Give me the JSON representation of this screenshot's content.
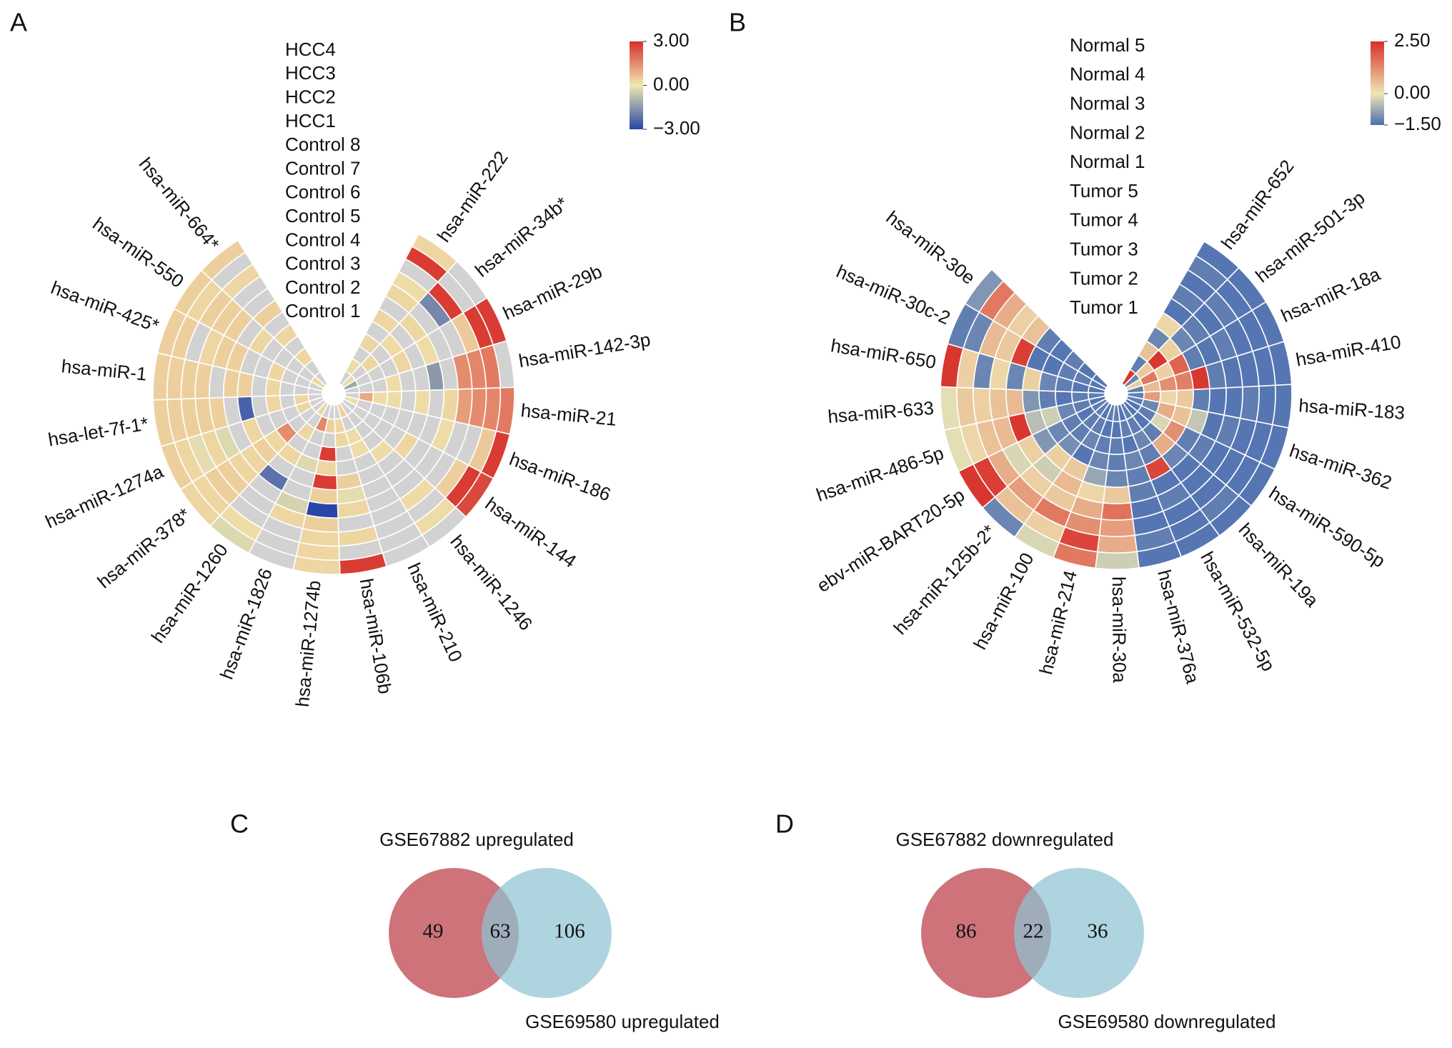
{
  "chart_data": [
    {
      "type": "polar_heatmap",
      "panel": "A",
      "categories": [
        "hsa-miR-222",
        "hsa-miR-34b*",
        "hsa-miR-29b",
        "hsa-miR-142-3p",
        "hsa-miR-21",
        "hsa-miR-186",
        "hsa-miR-144",
        "hsa-miR-1246",
        "hsa-miR-210",
        "hsa-miR-106b",
        "hsa-miR-1274b",
        "hsa-miR-1826",
        "hsa-miR-1260",
        "hsa-miR-378*",
        "hsa-miR-1274a",
        "hsa-let-7f-1*",
        "hsa-miR-1",
        "hsa-miR-425*",
        "hsa-miR-550",
        "hsa-miR-664*"
      ],
      "series": [
        {
          "name": "HCC4",
          "values": [
            0.3,
            null,
            2.8,
            null,
            1.8,
            2.8,
            2.6,
            null,
            null,
            2.8,
            0.3,
            null,
            -0.3,
            0.3,
            0.4,
            0.4,
            0.4,
            0.4,
            0.4,
            0.4
          ]
        },
        {
          "name": "HCC3",
          "values": [
            2.8,
            null,
            2.8,
            1.8,
            1.6,
            0.5,
            2.8,
            0.2,
            null,
            null,
            0.3,
            null,
            0.2,
            0.3,
            0.3,
            0.4,
            0.4,
            0.4,
            0.3,
            null
          ]
        },
        {
          "name": "HCC2",
          "values": [
            null,
            2.8,
            0.5,
            1.6,
            1.5,
            null,
            0.4,
            null,
            null,
            0.3,
            0.3,
            null,
            null,
            0.4,
            -0.2,
            0.4,
            0.4,
            null,
            0.4,
            0.3
          ]
        },
        {
          "name": "HCC1",
          "values": [
            0.2,
            -1.8,
            null,
            1.5,
            1.2,
            null,
            null,
            0.2,
            null,
            null,
            0.4,
            0.3,
            null,
            0.4,
            0.3,
            0.4,
            0.4,
            0.3,
            0.4,
            null
          ]
        },
        {
          "name": "Control 8",
          "values": [
            0.3,
            null,
            null,
            null,
            0.3,
            0.2,
            null,
            null,
            null,
            0.3,
            -3,
            -0.4,
            null,
            0.3,
            -0.3,
            0.4,
            null,
            0.4,
            0.4,
            null
          ]
        },
        {
          "name": "Control 7",
          "values": [
            null,
            0.3,
            0.2,
            -1.5,
            null,
            null,
            null,
            null,
            null,
            -0.2,
            0.4,
            null,
            -2.2,
            0.3,
            null,
            null,
            0.4,
            0.4,
            null,
            0.4
          ]
        },
        {
          "name": "Control 6",
          "values": [
            0.3,
            null,
            null,
            null,
            0.2,
            null,
            0.3,
            null,
            null,
            0.4,
            2.8,
            null,
            null,
            0.4,
            0.3,
            -2.5,
            0.4,
            null,
            0.3,
            null
          ]
        },
        {
          "name": "Control 5",
          "values": [
            null,
            0.2,
            0.3,
            null,
            null,
            null,
            null,
            0.2,
            null,
            null,
            0.3,
            -0.3,
            0.3,
            0.3,
            null,
            null,
            null,
            null,
            null,
            0.3
          ]
        },
        {
          "name": "Control 4",
          "values": [
            0.3,
            null,
            null,
            0.2,
            0.2,
            null,
            null,
            null,
            0.2,
            null,
            2.8,
            null,
            null,
            1.5,
            null,
            0.3,
            0.3,
            0.3,
            null,
            null
          ]
        },
        {
          "name": "Control 3",
          "values": [
            null,
            0.3,
            null,
            null,
            0.2,
            null,
            null,
            null,
            0.2,
            0.3,
            null,
            null,
            0.3,
            null,
            null,
            null,
            null,
            null,
            null,
            0.3
          ]
        },
        {
          "name": "Control 2",
          "values": [
            0.2,
            null,
            null,
            null,
            1.0,
            null,
            null,
            null,
            null,
            0.3,
            0.4,
            1.6,
            null,
            null,
            0.3,
            0.3,
            null,
            null,
            null,
            null
          ]
        },
        {
          "name": "Control 1",
          "values": [
            null,
            0.2,
            -1.2,
            null,
            null,
            0.2,
            null,
            null,
            0.4,
            null,
            null,
            null,
            0.3,
            null,
            null,
            null,
            null,
            null,
            0.3,
            null
          ]
        }
      ],
      "clim": [
        -3,
        3
      ],
      "cticks": [
        {
          "value": 3,
          "label": "3.00"
        },
        {
          "value": 0,
          "label": "0.00"
        },
        {
          "value": -3,
          "label": "−3.00"
        }
      ],
      "colors": [
        "#2746a8",
        "#f0e8b0",
        "#d7302a"
      ],
      "missing_color": "#d2d2d2"
    },
    {
      "type": "polar_heatmap",
      "panel": "B",
      "categories": [
        "hsa-miR-652",
        "hsa-miR-501-3p",
        "hsa-miR-18a",
        "hsa-miR-410",
        "hsa-miR-183",
        "hsa-miR-362",
        "hsa-miR-590-5p",
        "hsa-miR-19a",
        "hsa-miR-532-5p",
        "hsa-miR-376a",
        "hsa-miR-30a",
        "hsa-miR-214",
        "hsa-miR-100",
        "hsa-miR-125b-2*",
        "ebv-miR-BART20-5p",
        "hsa-miR-486-5p",
        "hsa-miR-633",
        "hsa-miR-650",
        "hsa-miR-30c-2",
        "hsa-miR-30e"
      ],
      "series": [
        {
          "name": "Normal 5",
          "values": [
            -1.4,
            -1.4,
            -1.4,
            -1.4,
            -1.4,
            -1.4,
            -1.4,
            -1.4,
            -1.4,
            -1.4,
            -0.3,
            1.5,
            -0.2,
            -1.2,
            2.4,
            -0.1,
            -0.1,
            2.4,
            -1.3,
            -1.0
          ]
        },
        {
          "name": "Normal 4",
          "values": [
            -1.3,
            -1.4,
            -1.4,
            -1.4,
            -1.4,
            -1.4,
            -1.4,
            -1.3,
            -1.4,
            -1.3,
            0.8,
            2.2,
            0.3,
            0.5,
            2.3,
            0.2,
            0.4,
            0.3,
            -1.2,
            1.5
          ]
        },
        {
          "name": "Normal 3",
          "values": [
            -1.4,
            -1.3,
            -1.4,
            -1.4,
            -1.3,
            -1.4,
            -1.4,
            -1.4,
            -1.4,
            -1.4,
            1.0,
            1.2,
            1.5,
            1.0,
            0.8,
            0.5,
            0.3,
            -1.2,
            0.6,
            0.8
          ]
        },
        {
          "name": "Normal 2",
          "values": [
            -1.3,
            -1.4,
            -1.3,
            -1.4,
            -1.4,
            -1.3,
            -1.4,
            -1.4,
            -1.3,
            -1.4,
            1.6,
            0.8,
            0.4,
            0.3,
            -0.2,
            0.6,
            0.5,
            0.2,
            0.4,
            0.3
          ]
        },
        {
          "name": "Normal 1",
          "values": [
            -1.4,
            -1.3,
            -1.4,
            -1.3,
            -1.4,
            -1.4,
            -1.3,
            -1.4,
            -1.4,
            -1.3,
            0.4,
            0.2,
            0.6,
            -0.3,
            0.3,
            2.4,
            0.6,
            -1.2,
            2.3,
            0.5
          ]
        },
        {
          "name": "Tumor 5",
          "values": [
            0.2,
            -1.2,
            -1.3,
            2.4,
            -1.3,
            -0.4,
            -1.3,
            -1.2,
            2.2,
            -1.3,
            -1.2,
            -0.8,
            0.4,
            0.3,
            -1.0,
            -0.5,
            -1.0,
            0.3,
            -1.4,
            -1.3
          ]
        },
        {
          "name": "Tumor 4",
          "values": [
            -1.2,
            0.3,
            1.8,
            1.4,
            0.4,
            0.5,
            1.2,
            0.8,
            -1.3,
            -1.2,
            -1.3,
            -1.2,
            -1.4,
            -1.1,
            -1.2,
            -0.3,
            -1.3,
            -1.2,
            -1.4,
            -1.4
          ]
        },
        {
          "name": "Tumor 3",
          "values": [
            0.5,
            2.4,
            0.3,
            1.2,
            0.2,
            0.8,
            -0.2,
            -1.3,
            -1.2,
            -1.4,
            -1.3,
            -1.3,
            -1.2,
            -1.3,
            -1.3,
            -1.2,
            -1.4,
            -1.3,
            -1.3,
            -1.3
          ]
        },
        {
          "name": "Tumor 2",
          "values": [
            -1.3,
            0.4,
            1.5,
            0.6,
            1.0,
            -1.2,
            -1.3,
            -1.4,
            -1.3,
            -1.3,
            -1.4,
            -1.4,
            -1.3,
            -1.3,
            -1.4,
            -1.3,
            -1.3,
            -1.4,
            -1.3,
            -1.4
          ]
        },
        {
          "name": "Tumor 1",
          "values": [
            2.4,
            -1.2,
            0.3,
            -1.3,
            -1.3,
            -1.3,
            -1.4,
            -1.4,
            -1.3,
            -1.4,
            -1.3,
            -1.3,
            -1.4,
            -1.3,
            -1.3,
            -1.4,
            -1.3,
            -1.4,
            -1.4,
            -1.4
          ]
        }
      ],
      "clim": [
        -1.5,
        2.5
      ],
      "cticks": [
        {
          "value": 2.5,
          "label": "2.50"
        },
        {
          "value": 0,
          "label": "0.00"
        },
        {
          "value": -1.5,
          "label": "−1.50"
        }
      ],
      "colors": [
        "#4a6eb2",
        "#efe6b4",
        "#d7302a"
      ],
      "missing_color": "#d2d2d2"
    },
    {
      "type": "venn",
      "panel": "C",
      "sets": [
        {
          "name": "GSE67882 upregulated",
          "color": "#c65a63"
        },
        {
          "name": "GSE69580 upregulated",
          "color": "#8ec4d3"
        }
      ],
      "values": [
        49,
        63,
        106
      ]
    },
    {
      "type": "venn",
      "panel": "D",
      "sets": [
        {
          "name": "GSE67882 downregulated",
          "color": "#c65a63"
        },
        {
          "name": "GSE69580 downregulated",
          "color": "#8ec4d3"
        }
      ],
      "values": [
        86,
        22,
        36
      ]
    }
  ]
}
